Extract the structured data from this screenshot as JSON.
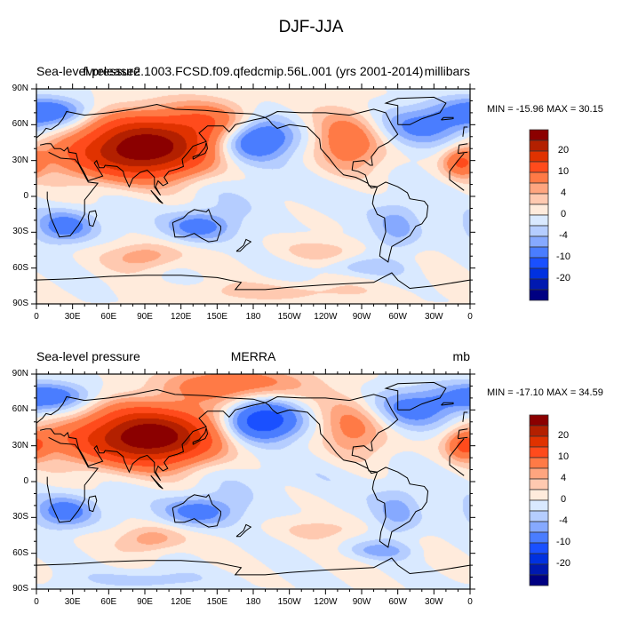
{
  "figure": {
    "title": "DJF-JJA"
  },
  "chart_data": [
    {
      "type": "heatmap",
      "projection": "cylindrical-equidistant",
      "title_left": "Sea-level pressure",
      "title_center": "fvrelease2.1003.FCSD.f09.qfedcmip.56L.001 (yrs 2001-2014)",
      "title_right": "millibars",
      "min_max_text": "MIN = -15.96 MAX =  30.15",
      "min": -15.96,
      "max": 30.15,
      "xlim": [
        0,
        360
      ],
      "ylim": [
        -90,
        90
      ],
      "xticks": [
        "0",
        "30E",
        "60E",
        "90E",
        "120E",
        "150E",
        "180",
        "150W",
        "120W",
        "90W",
        "60W",
        "30W",
        "0"
      ],
      "yticks": [
        "90N",
        "60N",
        "30N",
        "0",
        "30S",
        "60S",
        "90S"
      ],
      "features_mb": [
        {
          "lon": 95,
          "lat": 42,
          "amp": 24,
          "slon": 38,
          "slat": 18
        },
        {
          "lon": 60,
          "lat": 35,
          "amp": 8,
          "slon": 40,
          "slat": 14
        },
        {
          "lon": 150,
          "lat": 62,
          "amp": 7,
          "slon": 30,
          "slat": 12
        },
        {
          "lon": 180,
          "lat": 48,
          "amp": -14,
          "slon": 22,
          "slat": 13
        },
        {
          "lon": 258,
          "lat": 45,
          "amp": 9,
          "slon": 20,
          "slat": 18
        },
        {
          "lon": 330,
          "lat": 60,
          "amp": -8,
          "slon": 30,
          "slat": 12
        },
        {
          "lon": 15,
          "lat": 72,
          "amp": -7,
          "slon": 25,
          "slat": 8
        },
        {
          "lon": 352,
          "lat": 28,
          "amp": 9,
          "slon": 10,
          "slat": 8
        },
        {
          "lon": 25,
          "lat": -25,
          "amp": -8,
          "slon": 18,
          "slat": 10
        },
        {
          "lon": 135,
          "lat": -25,
          "amp": -8,
          "slon": 20,
          "slat": 9
        },
        {
          "lon": 300,
          "lat": -25,
          "amp": -5,
          "slon": 15,
          "slat": 16
        },
        {
          "lon": 90,
          "lat": -50,
          "amp": 6,
          "slon": 20,
          "slat": 8
        },
        {
          "lon": 240,
          "lat": -45,
          "amp": 3,
          "slon": 25,
          "slat": 6
        },
        {
          "lon": 270,
          "lat": -60,
          "amp": -3,
          "slon": 25,
          "slat": 5
        },
        {
          "lon": 200,
          "lat": -80,
          "amp": 3,
          "slon": 60,
          "slat": 6
        },
        {
          "lon": 180,
          "lat": 5,
          "amp": -1.5,
          "slon": 80,
          "slat": 15
        }
      ]
    },
    {
      "type": "heatmap",
      "projection": "cylindrical-equidistant",
      "title_left": "Sea-level pressure",
      "title_center": "MERRA",
      "title_right": "mb",
      "min_max_text": "MIN = -17.10 MAX =  34.59",
      "min": -17.1,
      "max": 34.59,
      "xlim": [
        0,
        360
      ],
      "ylim": [
        -90,
        90
      ],
      "xticks": [
        "0",
        "30E",
        "60E",
        "90E",
        "120E",
        "150E",
        "180",
        "150W",
        "120W",
        "90W",
        "60W",
        "30W",
        "0"
      ],
      "yticks": [
        "90N",
        "60N",
        "30N",
        "0",
        "30S",
        "60S",
        "90S"
      ],
      "features_mb": [
        {
          "lon": 100,
          "lat": 38,
          "amp": 26,
          "slon": 36,
          "slat": 17
        },
        {
          "lon": 50,
          "lat": 35,
          "amp": 8,
          "slon": 40,
          "slat": 14
        },
        {
          "lon": 165,
          "lat": 82,
          "amp": 9,
          "slon": 40,
          "slat": 10
        },
        {
          "lon": 185,
          "lat": 50,
          "amp": -15,
          "slon": 22,
          "slat": 12
        },
        {
          "lon": 262,
          "lat": 45,
          "amp": 7,
          "slon": 20,
          "slat": 18
        },
        {
          "lon": 320,
          "lat": 62,
          "amp": -8,
          "slon": 30,
          "slat": 12
        },
        {
          "lon": 15,
          "lat": 72,
          "amp": -7,
          "slon": 25,
          "slat": 8
        },
        {
          "lon": 355,
          "lat": 30,
          "amp": 9,
          "slon": 10,
          "slat": 8
        },
        {
          "lon": 25,
          "lat": -25,
          "amp": -8,
          "slon": 18,
          "slat": 10
        },
        {
          "lon": 135,
          "lat": -25,
          "amp": -8,
          "slon": 22,
          "slat": 9
        },
        {
          "lon": 300,
          "lat": -25,
          "amp": -5,
          "slon": 15,
          "slat": 16
        },
        {
          "lon": 95,
          "lat": -48,
          "amp": 6,
          "slon": 18,
          "slat": 8
        },
        {
          "lon": 240,
          "lat": -40,
          "amp": 3,
          "slon": 25,
          "slat": 6
        },
        {
          "lon": 285,
          "lat": -58,
          "amp": -4,
          "slon": 20,
          "slat": 5
        },
        {
          "lon": 90,
          "lat": -82,
          "amp": -3,
          "slon": 40,
          "slat": 6
        },
        {
          "lon": 180,
          "lat": 5,
          "amp": -1.5,
          "slon": 80,
          "slat": 15
        }
      ]
    }
  ],
  "colorbar": {
    "levels": [
      -25,
      -20,
      -15,
      -10,
      -6,
      -4,
      -2,
      0,
      2,
      4,
      6,
      10,
      15,
      20,
      25
    ],
    "labels": [
      "20",
      "10",
      "4",
      "0",
      "-4",
      "-10",
      "-20"
    ],
    "colors_high_to_low": [
      "#8b0000",
      "#b32000",
      "#e03200",
      "#ff4b1c",
      "#ff7a46",
      "#ffa57f",
      "#ffc9b0",
      "#ffebdc",
      "#d9e9ff",
      "#b5cdff",
      "#86a9ff",
      "#4a7dff",
      "#1a50ff",
      "#0031e0",
      "#0019b0",
      "#000082"
    ]
  },
  "coastlines": [
    [
      [
        -17,
        21
      ],
      [
        -10,
        30
      ],
      [
        -5,
        36
      ],
      [
        10,
        37
      ],
      [
        20,
        32
      ],
      [
        32,
        31
      ],
      [
        35,
        27
      ],
      [
        43,
        12
      ],
      [
        51,
        11
      ],
      [
        40,
        -3
      ],
      [
        40,
        -15
      ],
      [
        35,
        -24
      ],
      [
        28,
        -33
      ],
      [
        19,
        -34
      ],
      [
        12,
        -18
      ],
      [
        9,
        -2
      ],
      [
        9,
        4
      ],
      [
        -5,
        5
      ],
      [
        -17,
        14
      ],
      [
        -17,
        21
      ]
    ],
    [
      [
        -10,
        36
      ],
      [
        -9,
        43
      ],
      [
        -2,
        44
      ],
      [
        0,
        49
      ],
      [
        5,
        53
      ],
      [
        8,
        57
      ],
      [
        12,
        56
      ],
      [
        18,
        60
      ],
      [
        22,
        65
      ],
      [
        25,
        71
      ],
      [
        40,
        68
      ],
      [
        60,
        70
      ],
      [
        80,
        73
      ],
      [
        100,
        77
      ],
      [
        115,
        73
      ],
      [
        140,
        72
      ],
      [
        160,
        70
      ],
      [
        180,
        69
      ],
      [
        190,
        66
      ],
      [
        180,
        64
      ],
      [
        165,
        60
      ],
      [
        160,
        54
      ],
      [
        155,
        59
      ],
      [
        142,
        59
      ],
      [
        135,
        53
      ],
      [
        141,
        46
      ],
      [
        130,
        42
      ],
      [
        126,
        37
      ],
      [
        121,
        31
      ],
      [
        122,
        25
      ],
      [
        117,
        23
      ],
      [
        110,
        21
      ],
      [
        106,
        16
      ],
      [
        109,
        11
      ],
      [
        105,
        9
      ],
      [
        101,
        13
      ],
      [
        99,
        8
      ],
      [
        103,
        1
      ],
      [
        98,
        8
      ],
      [
        98,
        16
      ],
      [
        92,
        22
      ],
      [
        86,
        20
      ],
      [
        80,
        15
      ],
      [
        77,
        8
      ],
      [
        73,
        17
      ],
      [
        72,
        21
      ],
      [
        67,
        25
      ],
      [
        57,
        26
      ],
      [
        56,
        24
      ],
      [
        52,
        24
      ],
      [
        50,
        30
      ],
      [
        48,
        28
      ],
      [
        55,
        17
      ],
      [
        43,
        13
      ],
      [
        39,
        21
      ],
      [
        35,
        28
      ],
      [
        33,
        36
      ],
      [
        27,
        37
      ],
      [
        26,
        41
      ],
      [
        23,
        38
      ],
      [
        20,
        40
      ],
      [
        15,
        40
      ],
      [
        12,
        44
      ],
      [
        8,
        44
      ],
      [
        3,
        43
      ],
      [
        -2,
        37
      ],
      [
        -10,
        36
      ]
    ],
    [
      [
        113,
        -22
      ],
      [
        115,
        -34
      ],
      [
        123,
        -34
      ],
      [
        131,
        -31
      ],
      [
        137,
        -35
      ],
      [
        143,
        -38
      ],
      [
        150,
        -37
      ],
      [
        153,
        -28
      ],
      [
        153,
        -25
      ],
      [
        146,
        -19
      ],
      [
        143,
        -11
      ],
      [
        141,
        -13
      ],
      [
        136,
        -12
      ],
      [
        131,
        -11
      ],
      [
        126,
        -14
      ],
      [
        122,
        -18
      ],
      [
        113,
        -22
      ]
    ],
    [
      [
        190,
        66
      ],
      [
        200,
        71
      ],
      [
        220,
        70
      ],
      [
        240,
        70
      ],
      [
        260,
        68
      ],
      [
        280,
        73
      ],
      [
        290,
        70
      ],
      [
        295,
        60
      ],
      [
        300,
        52
      ],
      [
        292,
        45
      ],
      [
        284,
        41
      ],
      [
        278,
        33
      ],
      [
        279,
        26
      ],
      [
        277,
        26
      ],
      [
        272,
        30
      ],
      [
        263,
        29
      ],
      [
        262,
        22
      ],
      [
        267,
        21
      ],
      [
        273,
        18
      ],
      [
        276,
        9
      ],
      [
        283,
        8
      ],
      [
        278,
        7
      ],
      [
        275,
        11
      ],
      [
        265,
        16
      ],
      [
        255,
        18
      ],
      [
        249,
        24
      ],
      [
        243,
        32
      ],
      [
        236,
        40
      ],
      [
        235,
        48
      ],
      [
        225,
        58
      ],
      [
        210,
        60
      ],
      [
        200,
        57
      ],
      [
        196,
        60
      ],
      [
        193,
        64
      ],
      [
        190,
        66
      ]
    ],
    [
      [
        283,
        8
      ],
      [
        280,
        0
      ],
      [
        279,
        -6
      ],
      [
        283,
        -15
      ],
      [
        289,
        -18
      ],
      [
        290,
        -30
      ],
      [
        286,
        -42
      ],
      [
        285,
        -50
      ],
      [
        292,
        -55
      ],
      [
        293,
        -50
      ],
      [
        295,
        -42
      ],
      [
        302,
        -38
      ],
      [
        310,
        -33
      ],
      [
        315,
        -25
      ],
      [
        320,
        -23
      ],
      [
        324,
        -17
      ],
      [
        325,
        -8
      ],
      [
        322,
        -4
      ],
      [
        310,
        -2
      ],
      [
        308,
        3
      ],
      [
        300,
        8
      ],
      [
        290,
        12
      ],
      [
        283,
        8
      ]
    ],
    [
      [
        300,
        60
      ],
      [
        310,
        60
      ],
      [
        320,
        65
      ],
      [
        335,
        70
      ],
      [
        340,
        78
      ],
      [
        330,
        83
      ],
      [
        300,
        82
      ],
      [
        290,
        78
      ],
      [
        300,
        76
      ],
      [
        300,
        70
      ],
      [
        300,
        60
      ]
    ],
    [
      [
        0,
        -70
      ],
      [
        30,
        -69
      ],
      [
        60,
        -67
      ],
      [
        90,
        -66
      ],
      [
        120,
        -66
      ],
      [
        150,
        -68
      ],
      [
        170,
        -72
      ],
      [
        165,
        -78
      ],
      [
        190,
        -78
      ],
      [
        210,
        -76
      ],
      [
        240,
        -74
      ],
      [
        260,
        -73
      ],
      [
        280,
        -72
      ],
      [
        295,
        -64
      ],
      [
        300,
        -70
      ],
      [
        310,
        -77
      ],
      [
        330,
        -75
      ],
      [
        360,
        -70
      ]
    ],
    [
      [
        -6,
        50
      ],
      [
        -5,
        58
      ],
      [
        -2,
        58
      ],
      [
        1,
        52
      ],
      [
        -6,
        50
      ]
    ],
    [
      [
        130,
        31
      ],
      [
        135,
        34
      ],
      [
        140,
        36
      ],
      [
        142,
        40
      ],
      [
        141,
        45
      ],
      [
        140,
        41
      ],
      [
        135,
        35
      ],
      [
        130,
        33
      ],
      [
        130,
        31
      ]
    ],
    [
      [
        44,
        -13
      ],
      [
        49,
        -12
      ],
      [
        50,
        -16
      ],
      [
        47,
        -25
      ],
      [
        44,
        -24
      ],
      [
        43,
        -17
      ],
      [
        44,
        -13
      ]
    ],
    [
      [
        95,
        5
      ],
      [
        105,
        -6
      ],
      [
        102,
        -4
      ],
      [
        95,
        5
      ]
    ],
    [
      [
        166,
        -46
      ],
      [
        172,
        -41
      ],
      [
        174,
        -36
      ],
      [
        178,
        -38
      ],
      [
        174,
        -41
      ],
      [
        169,
        -46
      ],
      [
        166,
        -46
      ]
    ],
    [
      [
        -24,
        64
      ],
      [
        -14,
        65
      ],
      [
        -14,
        66
      ],
      [
        -22,
        66
      ],
      [
        -24,
        64
      ]
    ]
  ]
}
